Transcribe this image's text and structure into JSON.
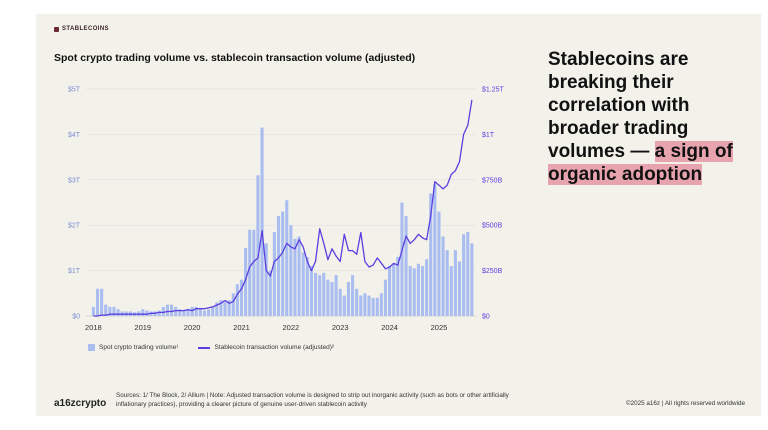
{
  "tag": "STABLECOINS",
  "title": "Spot crypto trading volume vs. stablecoin transaction volume (adjusted)",
  "headline": {
    "part1": "Stablecoins are breaking their correlation with broader trading volumes —",
    "highlight": "a sign of organic adoption"
  },
  "legend": {
    "bars": "Spot crypto trading volume¹",
    "line": "Stablecoin transaction volume (adjusted)²"
  },
  "footer": {
    "logo": "a16zcrypto",
    "sources": "Sources: 1/ The Block, 2/ Allium  |  Note: Adjusted transaction volume is designed to strip out inorganic activity (such as bots or other artificially inflationary practices), providing a clearer picture of genuine user-driven stablecoin activity",
    "copyright": "©2025 a16z | All rights reserved worldwide"
  },
  "colors": {
    "bars": "#a9bdf0",
    "line": "#5b3fe0",
    "axis_left": "#7f8fd6",
    "axis_right": "#5b3fe0",
    "highlight": "#e8a4ae"
  },
  "chart_data": {
    "type": "bar",
    "title": "Spot crypto trading volume vs. stablecoin transaction volume (adjusted)",
    "x_start": 2018.0,
    "x_step": 0.08333,
    "xlim": [
      2017.85,
      2025.75
    ],
    "x_ticks": [
      2018,
      2019,
      2020,
      2021,
      2022,
      2023,
      2024,
      2025
    ],
    "x_tick_labels": [
      "2018",
      "2019",
      "2020",
      "2021",
      "2022",
      "2023",
      "2024",
      "2025"
    ],
    "ylim_left": [
      0,
      5
    ],
    "y_ticks_left": [
      0,
      1,
      2,
      3,
      4,
      5
    ],
    "y_tick_labels_left": [
      "$0",
      "$1T",
      "$2T",
      "$3T",
      "$4T",
      "$5T"
    ],
    "ylim_right": [
      0,
      1.25
    ],
    "y_ticks_right": [
      0,
      0.25,
      0.5,
      0.75,
      1.0,
      1.25
    ],
    "y_tick_labels_right": [
      "$0",
      "$250B",
      "$500B",
      "$750B",
      "$1T",
      "$1.25T"
    ],
    "series": [
      {
        "name": "Spot crypto trading volume¹",
        "kind": "bar",
        "axis": "left",
        "values": [
          0.2,
          0.6,
          0.6,
          0.25,
          0.2,
          0.2,
          0.15,
          0.1,
          0.1,
          0.1,
          0.08,
          0.1,
          0.15,
          0.12,
          0.1,
          0.1,
          0.12,
          0.2,
          0.25,
          0.25,
          0.2,
          0.15,
          0.12,
          0.15,
          0.2,
          0.2,
          0.15,
          0.12,
          0.15,
          0.2,
          0.3,
          0.35,
          0.3,
          0.35,
          0.5,
          0.7,
          0.8,
          1.5,
          1.9,
          1.9,
          3.1,
          4.15,
          1.6,
          1.0,
          1.85,
          2.2,
          2.3,
          2.55,
          2.0,
          1.7,
          1.75,
          1.4,
          1.3,
          1.1,
          0.95,
          0.9,
          0.95,
          0.8,
          0.75,
          0.9,
          0.6,
          0.45,
          0.75,
          0.9,
          0.6,
          0.45,
          0.5,
          0.45,
          0.4,
          0.4,
          0.5,
          0.8,
          1.1,
          1.15,
          1.3,
          2.5,
          2.2,
          1.1,
          1.05,
          1.15,
          1.1,
          1.25,
          2.7,
          2.9,
          2.3,
          1.75,
          1.45,
          1.1,
          1.45,
          1.2,
          1.8,
          1.85,
          1.6
        ]
      },
      {
        "name": "Stablecoin transaction volume (adjusted)²",
        "kind": "line",
        "axis": "right",
        "values": [
          0.0,
          0.0,
          0.005,
          0.005,
          0.01,
          0.01,
          0.01,
          0.01,
          0.01,
          0.01,
          0.01,
          0.01,
          0.01,
          0.01,
          0.015,
          0.015,
          0.02,
          0.02,
          0.025,
          0.025,
          0.03,
          0.03,
          0.03,
          0.035,
          0.03,
          0.04,
          0.04,
          0.04,
          0.045,
          0.05,
          0.06,
          0.07,
          0.085,
          0.07,
          0.08,
          0.12,
          0.15,
          0.2,
          0.27,
          0.3,
          0.32,
          0.47,
          0.25,
          0.22,
          0.3,
          0.32,
          0.35,
          0.4,
          0.38,
          0.37,
          0.42,
          0.38,
          0.3,
          0.25,
          0.3,
          0.48,
          0.4,
          0.31,
          0.37,
          0.33,
          0.3,
          0.45,
          0.36,
          0.36,
          0.34,
          0.46,
          0.3,
          0.27,
          0.28,
          0.32,
          0.29,
          0.26,
          0.27,
          0.29,
          0.28,
          0.36,
          0.44,
          0.4,
          0.42,
          0.45,
          0.43,
          0.42,
          0.55,
          0.74,
          0.72,
          0.7,
          0.72,
          0.78,
          0.8,
          0.85,
          1.0,
          1.05,
          1.19
        ]
      }
    ]
  }
}
